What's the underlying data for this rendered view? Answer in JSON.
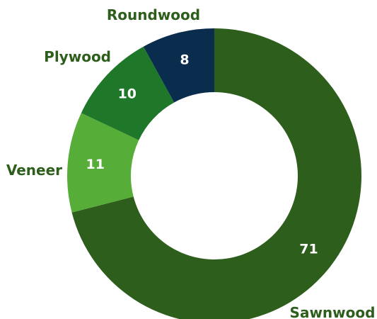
{
  "chart_data": {
    "type": "pie",
    "variant": "donut",
    "categories": [
      "Sawnwood",
      "Veneer",
      "Plywood",
      "Roundwood"
    ],
    "values": [
      71,
      11,
      10,
      8
    ],
    "colors": [
      "#2d5e1c",
      "#56ad37",
      "#1f782a",
      "#0a2d4e"
    ],
    "label_color": "#2d5e1c",
    "legend": "none"
  }
}
